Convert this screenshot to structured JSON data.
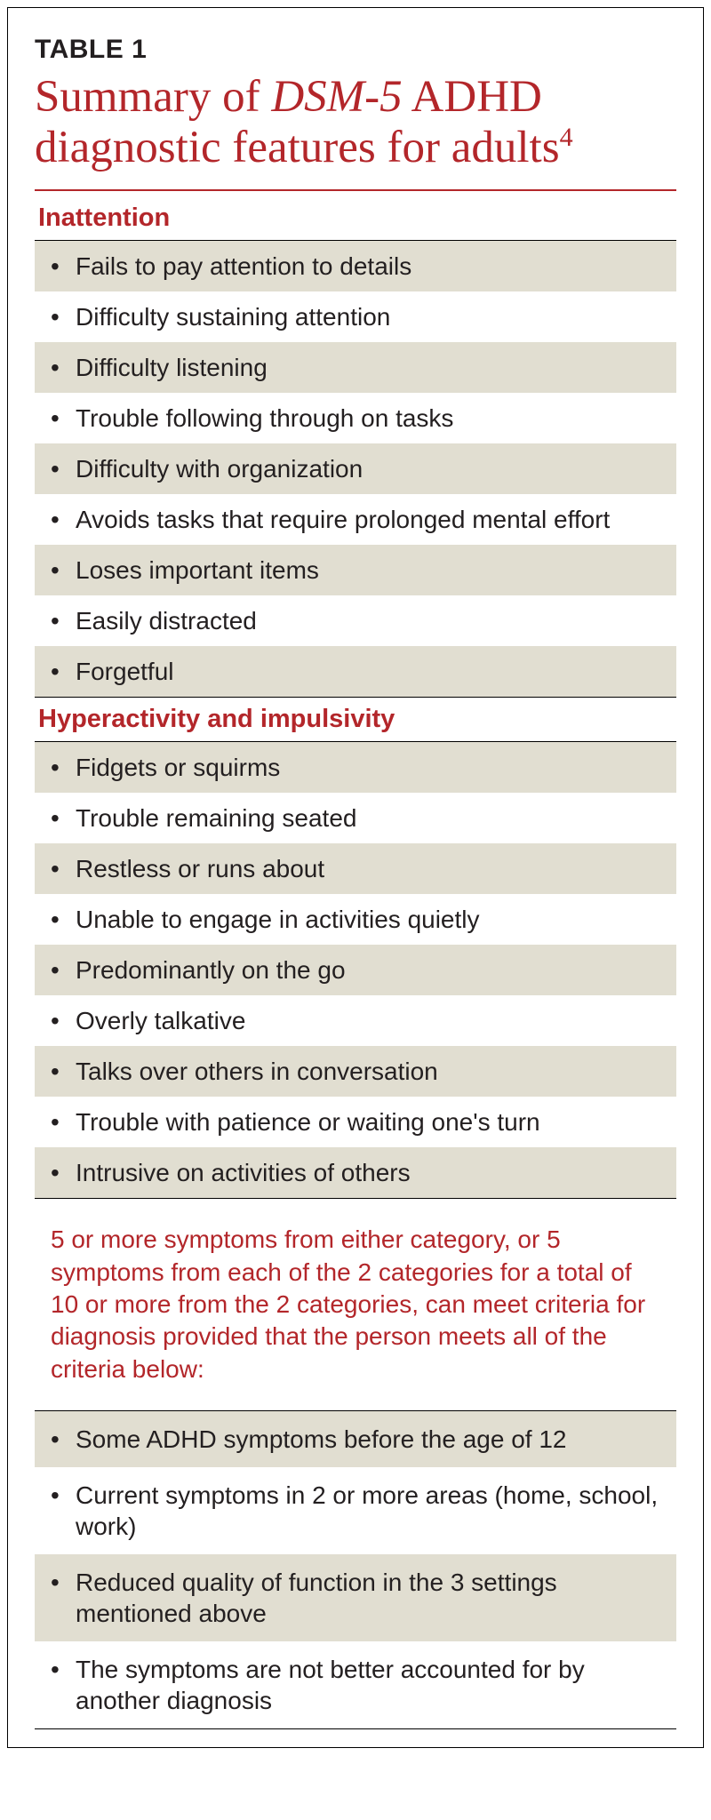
{
  "type": "table",
  "colors": {
    "accent": "#b3262a",
    "stripe": "#e1ded1",
    "background": "#ffffff",
    "text": "#231f20",
    "rule": "#000000"
  },
  "typography": {
    "title_fontsize": 51,
    "label_fontsize": 30,
    "section_head_fontsize": 29,
    "body_fontsize": 28,
    "title_font": "Minion Pro serif",
    "body_font": "Myriad Pro sans-serif"
  },
  "table_label": "TABLE 1",
  "title_pre": "Summary of ",
  "title_em": "DSM-5",
  "title_post": " ADHD diagnostic features for adults",
  "title_sup": "4",
  "sections": [
    {
      "heading": "Inattention",
      "items": [
        "Fails to pay attention to details",
        "Difficulty sustaining attention",
        "Difficulty listening",
        "Trouble following through on tasks",
        "Difficulty with organization",
        "Avoids tasks that require prolonged mental effort",
        "Loses important items",
        "Easily distracted",
        "Forgetful"
      ]
    },
    {
      "heading": "Hyperactivity and impulsivity",
      "items": [
        "Fidgets or squirms",
        "Trouble remaining seated",
        "Restless or runs about",
        "Unable to engage in activities quietly",
        "Predominantly on the go",
        "Overly talkative",
        "Talks over others in conversation",
        "Trouble with patience or waiting one's turn",
        "Intrusive on activities of others"
      ]
    }
  ],
  "criteria_note": "5 or more symptoms from either category, or 5 symptoms from each of the 2 categories for a total of 10 or more from the 2 categories, can meet criteria for diagnosis provided that the person meets all of the criteria below:",
  "criteria_items": [
    "Some ADHD symptoms before the age of 12",
    "Current symptoms in 2 or more areas (home, school, work)",
    "Reduced quality of function in the 3 settings mentioned above",
    "The symptoms are not better accounted for by another diagnosis"
  ]
}
